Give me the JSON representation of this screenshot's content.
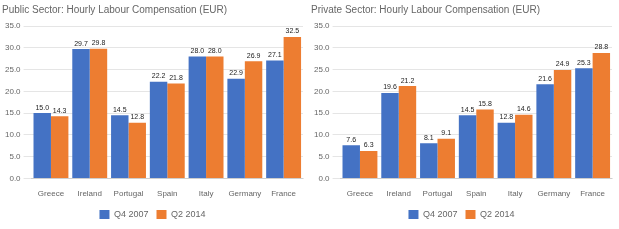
{
  "chart_data": [
    {
      "type": "bar",
      "title": "Public Sector: Hourly Labour Compensation (EUR)",
      "categories": [
        "Greece",
        "Ireland",
        "Portugal",
        "Spain",
        "Italy",
        "Germany",
        "France"
      ],
      "series": [
        {
          "name": "Q4 2007",
          "color": "#4472C4",
          "values": [
            15.0,
            29.7,
            14.5,
            22.2,
            28.0,
            22.9,
            27.1
          ],
          "value_labels": [
            "15.0",
            "29.7",
            "14.5",
            "22.2",
            "28.0",
            "22.9",
            "27.1"
          ]
        },
        {
          "name": "Q2 2014",
          "color": "#ED7D31",
          "values": [
            14.3,
            29.8,
            12.8,
            21.8,
            28.0,
            26.9,
            32.5
          ],
          "value_labels": [
            "14.3",
            "29.8",
            "12.8",
            "21.8",
            "28.0",
            "26.9",
            "32.5"
          ]
        }
      ],
      "ylim": [
        0,
        35
      ],
      "yticks": [
        {
          "value": 0,
          "label": "0.0"
        },
        {
          "value": 5,
          "label": "5.0"
        },
        {
          "value": 10,
          "label": "10.0"
        },
        {
          "value": 15,
          "label": "15.0"
        },
        {
          "value": 20,
          "label": "20.0"
        },
        {
          "value": 25,
          "label": "25.0"
        },
        {
          "value": 30,
          "label": "30.0"
        },
        {
          "value": 35,
          "label": "35.0"
        }
      ],
      "grid": true,
      "legend": "bottom",
      "data_labels": true
    },
    {
      "type": "bar",
      "title": "Private Sector: Hourly Labour Compensation (EUR)",
      "categories": [
        "Greece",
        "Ireland",
        "Portugal",
        "Spain",
        "Italy",
        "Germany",
        "France"
      ],
      "series": [
        {
          "name": "Q4 2007",
          "color": "#4472C4",
          "values": [
            7.6,
            19.6,
            8.1,
            14.5,
            12.8,
            21.6,
            25.3
          ],
          "value_labels": [
            "7.6",
            "19.6",
            "8.1",
            "14.5",
            "12.8",
            "21.6",
            "25.3"
          ]
        },
        {
          "name": "Q2 2014",
          "color": "#ED7D31",
          "values": [
            6.3,
            21.2,
            9.1,
            15.8,
            14.6,
            24.9,
            28.8
          ],
          "value_labels": [
            "6.3",
            "21.2",
            "9.1",
            "15.8",
            "14.6",
            "24.9",
            "28.8"
          ]
        }
      ],
      "ylim": [
        0,
        35
      ],
      "yticks": [
        {
          "value": 0,
          "label": "0.0"
        },
        {
          "value": 5,
          "label": "5.0"
        },
        {
          "value": 10,
          "label": "10.0"
        },
        {
          "value": 15,
          "label": "15.0"
        },
        {
          "value": 20,
          "label": "20.0"
        },
        {
          "value": 25,
          "label": "25.0"
        },
        {
          "value": 30,
          "label": "30.0"
        },
        {
          "value": 35,
          "label": "35.0"
        }
      ],
      "grid": true,
      "legend": "bottom",
      "data_labels": true
    }
  ]
}
